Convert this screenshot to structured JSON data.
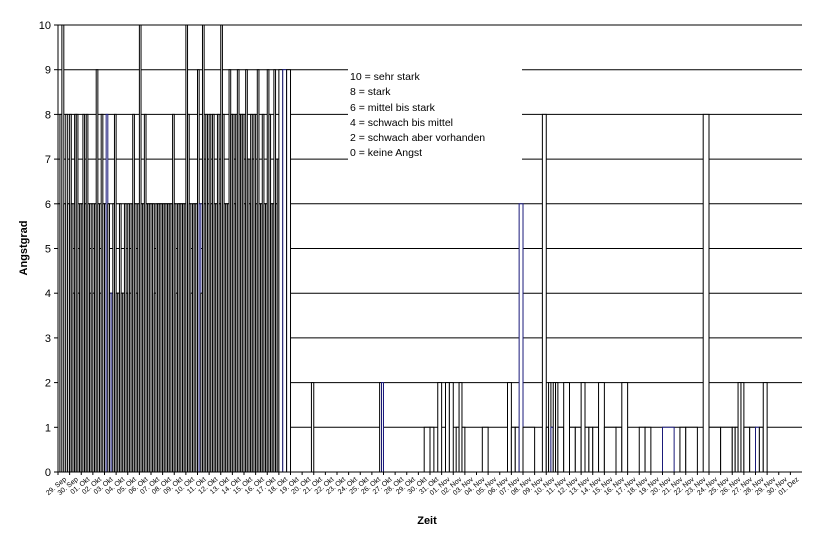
{
  "chart_data": {
    "type": "bar",
    "title": "",
    "xlabel": "Zeit",
    "ylabel": "Angstgrad",
    "ylim": [
      0,
      10
    ],
    "yticks": [
      0,
      1,
      2,
      3,
      4,
      5,
      6,
      7,
      8,
      9,
      10
    ],
    "grid": true,
    "legend_position": "top-center",
    "bar_color": "#ffffff",
    "bar_edge_color": "#000000",
    "accent_bar_color": "#1a1a7a",
    "categories": [
      "29. Sep",
      "30. Sep",
      "01. Okt",
      "02. Okt",
      "03. Okt",
      "04. Okt",
      "05. Okt",
      "06. Okt",
      "07. Okt",
      "08. Okt",
      "09. Okt",
      "10. Okt",
      "11. Okt",
      "12. Okt",
      "13. Okt",
      "14. Okt",
      "15. Okt",
      "16. Okt",
      "17. Okt",
      "18. Okt",
      "19. Okt",
      "20. Okt",
      "21. Okt",
      "22. Okt",
      "23. Okt",
      "24. Okt",
      "25. Okt",
      "26. Okt",
      "27. Okt",
      "28. Okt",
      "29. Okt",
      "30. Okt",
      "31. Okt",
      "01. Nov",
      "02. Nov",
      "03. Nov",
      "04. Nov",
      "05. Nov",
      "06. Nov",
      "07. Nov",
      "08. Nov",
      "09. Nov",
      "10. Nov",
      "11. Nov",
      "12. Nov",
      "13. Nov",
      "14. Nov",
      "15. Nov",
      "16. Nov",
      "17. Nov",
      "18. Nov",
      "19. Nov",
      "20. Nov",
      "21. Nov",
      "22. Nov",
      "23. Nov",
      "24. Nov",
      "25. Nov",
      "26. Nov",
      "27. Nov",
      "28. Nov",
      "29. Nov",
      "30. Nov",
      "01. Dez"
    ],
    "values_per_day": [
      [
        6,
        8,
        10,
        6,
        8,
        6
      ],
      [
        8,
        6,
        4,
        8,
        8,
        4,
        6
      ],
      [
        6,
        8,
        6,
        8,
        6,
        4,
        6
      ],
      [
        4,
        6,
        9,
        6,
        4,
        8,
        6
      ],
      [
        6,
        8,
        6,
        4,
        4,
        6,
        8
      ],
      [
        4,
        4,
        6,
        4,
        4,
        6,
        4
      ],
      [
        6,
        4,
        6,
        8,
        6,
        4,
        6
      ],
      [
        10,
        6,
        6,
        8,
        6,
        6,
        6
      ],
      [
        6,
        6,
        4,
        6,
        6,
        6,
        6
      ],
      [
        6,
        6,
        6,
        6,
        6,
        6,
        8
      ],
      [
        6,
        4,
        6,
        6,
        6,
        6,
        6
      ],
      [
        10,
        8,
        6,
        4,
        6,
        6,
        6
      ],
      [
        9,
        6,
        4,
        10,
        6,
        8,
        6
      ],
      [
        8,
        6,
        8,
        6,
        6,
        8,
        6
      ],
      [
        10,
        8,
        6,
        6,
        6,
        9,
        8
      ],
      [
        8,
        6,
        8,
        9,
        8,
        8,
        8
      ],
      [
        6,
        9,
        7,
        6,
        8,
        7,
        8
      ],
      [
        6,
        9,
        6,
        6,
        8,
        6,
        6
      ],
      [
        9,
        8,
        6,
        6,
        9,
        6,
        7
      ],
      [
        9,
        9,
        9
      ],
      [
        0
      ],
      [
        0,
        0,
        0,
        0,
        2
      ],
      [
        0
      ],
      [
        0
      ],
      [
        0
      ],
      [
        0
      ],
      [
        0
      ],
      [
        0,
        0,
        0,
        0,
        2,
        2
      ],
      [
        0
      ],
      [
        0
      ],
      [
        0
      ],
      [
        0,
        1
      ],
      [
        1,
        0,
        2
      ],
      [
        0,
        2,
        2
      ],
      [
        0,
        1,
        2,
        1
      ],
      [
        0
      ],
      [
        0,
        1
      ],
      [
        0
      ],
      [
        0,
        0,
        2
      ],
      [
        1,
        1,
        6
      ],
      [
        1
      ],
      [
        0,
        0,
        8
      ],
      [
        1,
        2,
        1,
        2,
        2
      ],
      [
        1,
        2
      ],
      [
        1,
        1
      ],
      [
        2,
        1,
        1
      ],
      [
        1,
        2
      ],
      [
        1
      ],
      [
        1,
        2
      ],
      [
        0
      ],
      [
        1,
        1
      ],
      [
        0
      ],
      [
        1
      ],
      [
        0,
        1
      ],
      [
        1
      ],
      [
        0,
        8
      ],
      [
        1
      ],
      [
        1
      ],
      [
        1,
        1,
        2,
        2
      ],
      [
        1,
        1
      ],
      [
        1,
        1,
        2
      ],
      [
        0
      ],
      [
        0
      ],
      [
        0
      ]
    ],
    "accent_bars": [
      [
        4,
        1
      ],
      [
        4,
        4
      ],
      [
        12,
        1
      ],
      [
        19,
        1
      ],
      [
        27,
        5
      ],
      [
        35,
        0
      ],
      [
        39,
        2
      ],
      [
        42,
        2
      ],
      [
        52,
        0
      ],
      [
        60,
        0
      ]
    ],
    "legend": [
      "10 =   sehr stark",
      "8   =  stark",
      "6  =  mittel bis stark",
      "4  =   schwach bis mittel",
      "2  =  schwach aber vorhanden",
      "0  =   keine Angst"
    ]
  }
}
